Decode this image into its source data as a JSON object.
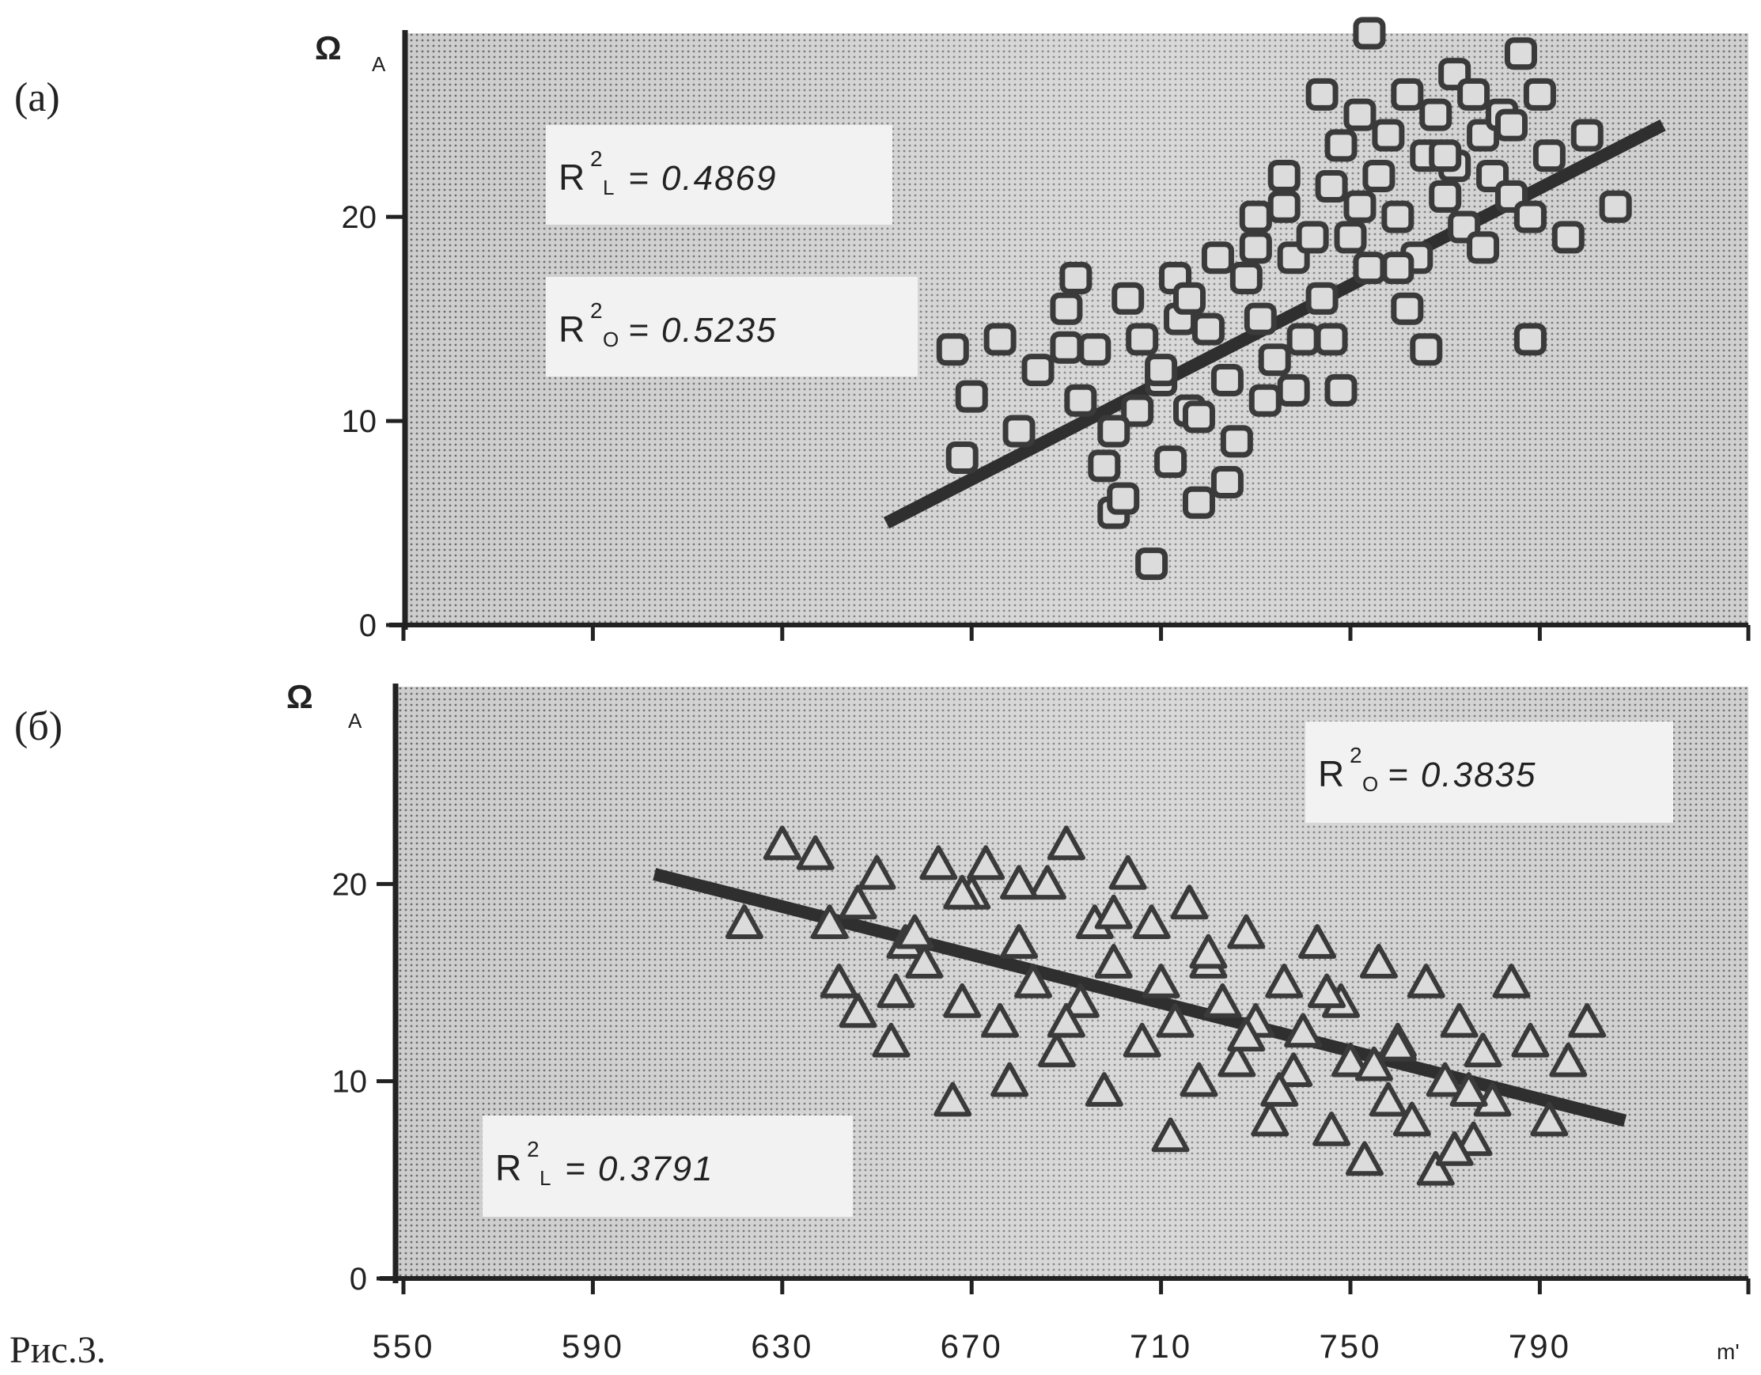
{
  "figure_caption": "Рис.3.",
  "x_unit_label": "m'",
  "colors": {
    "plot_background": "#c4c4c4",
    "plot_background_right": "#d8d8d8",
    "marker_fill": "#dcdcdc",
    "marker_edge": "#3a3a3a",
    "line": "#2f2f2f",
    "axis": "#222222",
    "box": "#f2f2f2"
  },
  "chart_data": [
    {
      "type": "scatter",
      "panel_label": "(a)",
      "ylabel": "Ω",
      "ylabel_sub": "A",
      "xlabel": "",
      "xlim": [
        550,
        820
      ],
      "ylim": [
        0,
        29
      ],
      "xticks": [
        550,
        590,
        630,
        670,
        710,
        750,
        790
      ],
      "yticks": [
        0,
        10,
        20
      ],
      "marker": "square",
      "grid": false,
      "annotations": [
        {
          "base": "R",
          "sup": "2",
          "sub": "L",
          "text": "= 0.4869",
          "position": "upper-left"
        },
        {
          "base": "R",
          "sup": "2",
          "sub": "O",
          "text": "= 0.5235",
          "position": "middle-left"
        }
      ],
      "fit_line": {
        "x": [
          652,
          816
        ],
        "y": [
          5,
          24.5
        ]
      },
      "points": {
        "x": [
          666,
          670,
          668,
          676,
          680,
          684,
          690,
          693,
          696,
          698,
          700,
          703,
          705,
          706,
          708,
          710,
          712,
          713,
          714,
          716,
          718,
          720,
          722,
          724,
          726,
          728,
          730,
          731,
          732,
          734,
          736,
          738,
          740,
          742,
          744,
          746,
          748,
          750,
          752,
          754,
          756,
          758,
          760,
          762,
          764,
          766,
          768,
          770,
          772,
          774,
          776,
          778,
          780,
          782,
          784,
          786,
          788,
          790,
          792,
          796,
          800,
          806,
          692,
          700,
          710,
          716,
          724,
          730,
          738,
          746,
          752,
          760,
          766,
          772,
          778,
          784,
          788,
          744,
          754,
          736,
          702,
          690,
          718,
          762,
          770,
          748
        ],
        "y": [
          13.5,
          11.2,
          8.2,
          14,
          9.5,
          12.5,
          15.5,
          11,
          13.5,
          7.8,
          5.5,
          16,
          10.5,
          14,
          3,
          12,
          8,
          17,
          15,
          10.5,
          6,
          14.5,
          18,
          12,
          9,
          17,
          20,
          15,
          11,
          13,
          22,
          18,
          14,
          19,
          16,
          21.5,
          23.5,
          19,
          25,
          17.5,
          22,
          24,
          20,
          26,
          18,
          23,
          25,
          21,
          27,
          19.5,
          26,
          24,
          22,
          25,
          21,
          28,
          20,
          26,
          23,
          19,
          24,
          20.5,
          17,
          9.5,
          12.5,
          16,
          7,
          18.5,
          11.5,
          14,
          20.5,
          17.5,
          13.5,
          22.5,
          18.5,
          24.5,
          14,
          26,
          29,
          20.5,
          6.2,
          13.6,
          10.2,
          15.5,
          23,
          11.5
        ]
      }
    },
    {
      "type": "scatter",
      "panel_label": "(б)",
      "ylabel": "Ω",
      "ylabel_sub": "A",
      "xlabel": "",
      "xlim": [
        550,
        820
      ],
      "ylim": [
        0,
        30
      ],
      "xticks": [
        550,
        590,
        630,
        670,
        710,
        750,
        790
      ],
      "xtick_labels": [
        "550",
        "590",
        "630",
        "670",
        "710",
        "750",
        "790"
      ],
      "yticks": [
        0,
        10,
        20
      ],
      "marker": "triangle",
      "grid": false,
      "annotations": [
        {
          "base": "R",
          "sup": "2",
          "sub": "O",
          "text": "= 0.3835",
          "position": "upper-right"
        },
        {
          "base": "R",
          "sup": "2",
          "sub": "L",
          "text": "= 0.3791",
          "position": "lower-left"
        }
      ],
      "fit_line": {
        "x": [
          603,
          808
        ],
        "y": [
          20.5,
          8
        ]
      },
      "points": {
        "x": [
          622,
          630,
          637,
          642,
          646,
          650,
          653,
          656,
          660,
          663,
          666,
          668,
          670,
          673,
          676,
          678,
          680,
          683,
          686,
          688,
          690,
          693,
          696,
          698,
          700,
          703,
          706,
          708,
          710,
          713,
          716,
          718,
          720,
          723,
          726,
          728,
          730,
          733,
          736,
          738,
          740,
          743,
          746,
          748,
          750,
          753,
          756,
          758,
          760,
          763,
          766,
          768,
          770,
          773,
          776,
          778,
          780,
          784,
          788,
          792,
          796,
          800,
          654,
          668,
          646,
          640,
          680,
          700,
          720,
          745,
          760,
          775,
          690,
          735,
          755,
          772,
          658,
          712,
          728
        ],
        "y": [
          18,
          22,
          21.5,
          15,
          19,
          20.5,
          12,
          17,
          16,
          21,
          9,
          14,
          19.5,
          21,
          13,
          10,
          17,
          15,
          20,
          11.5,
          22,
          14,
          18,
          9.5,
          16,
          20.5,
          12,
          18,
          15,
          13,
          19,
          10,
          16,
          14,
          11,
          17.5,
          13,
          8,
          15,
          10.5,
          12.5,
          17,
          7.5,
          14,
          11,
          6,
          16,
          9,
          12,
          8,
          15,
          5.5,
          10,
          13,
          7,
          11.5,
          9,
          15,
          12,
          8,
          11,
          13,
          14.5,
          19.5,
          13.5,
          18,
          20,
          18.5,
          16.5,
          14.5,
          11.8,
          9.5,
          13,
          9.5,
          10.8,
          6.5,
          17.5,
          7.2,
          12.3
        ]
      }
    }
  ]
}
